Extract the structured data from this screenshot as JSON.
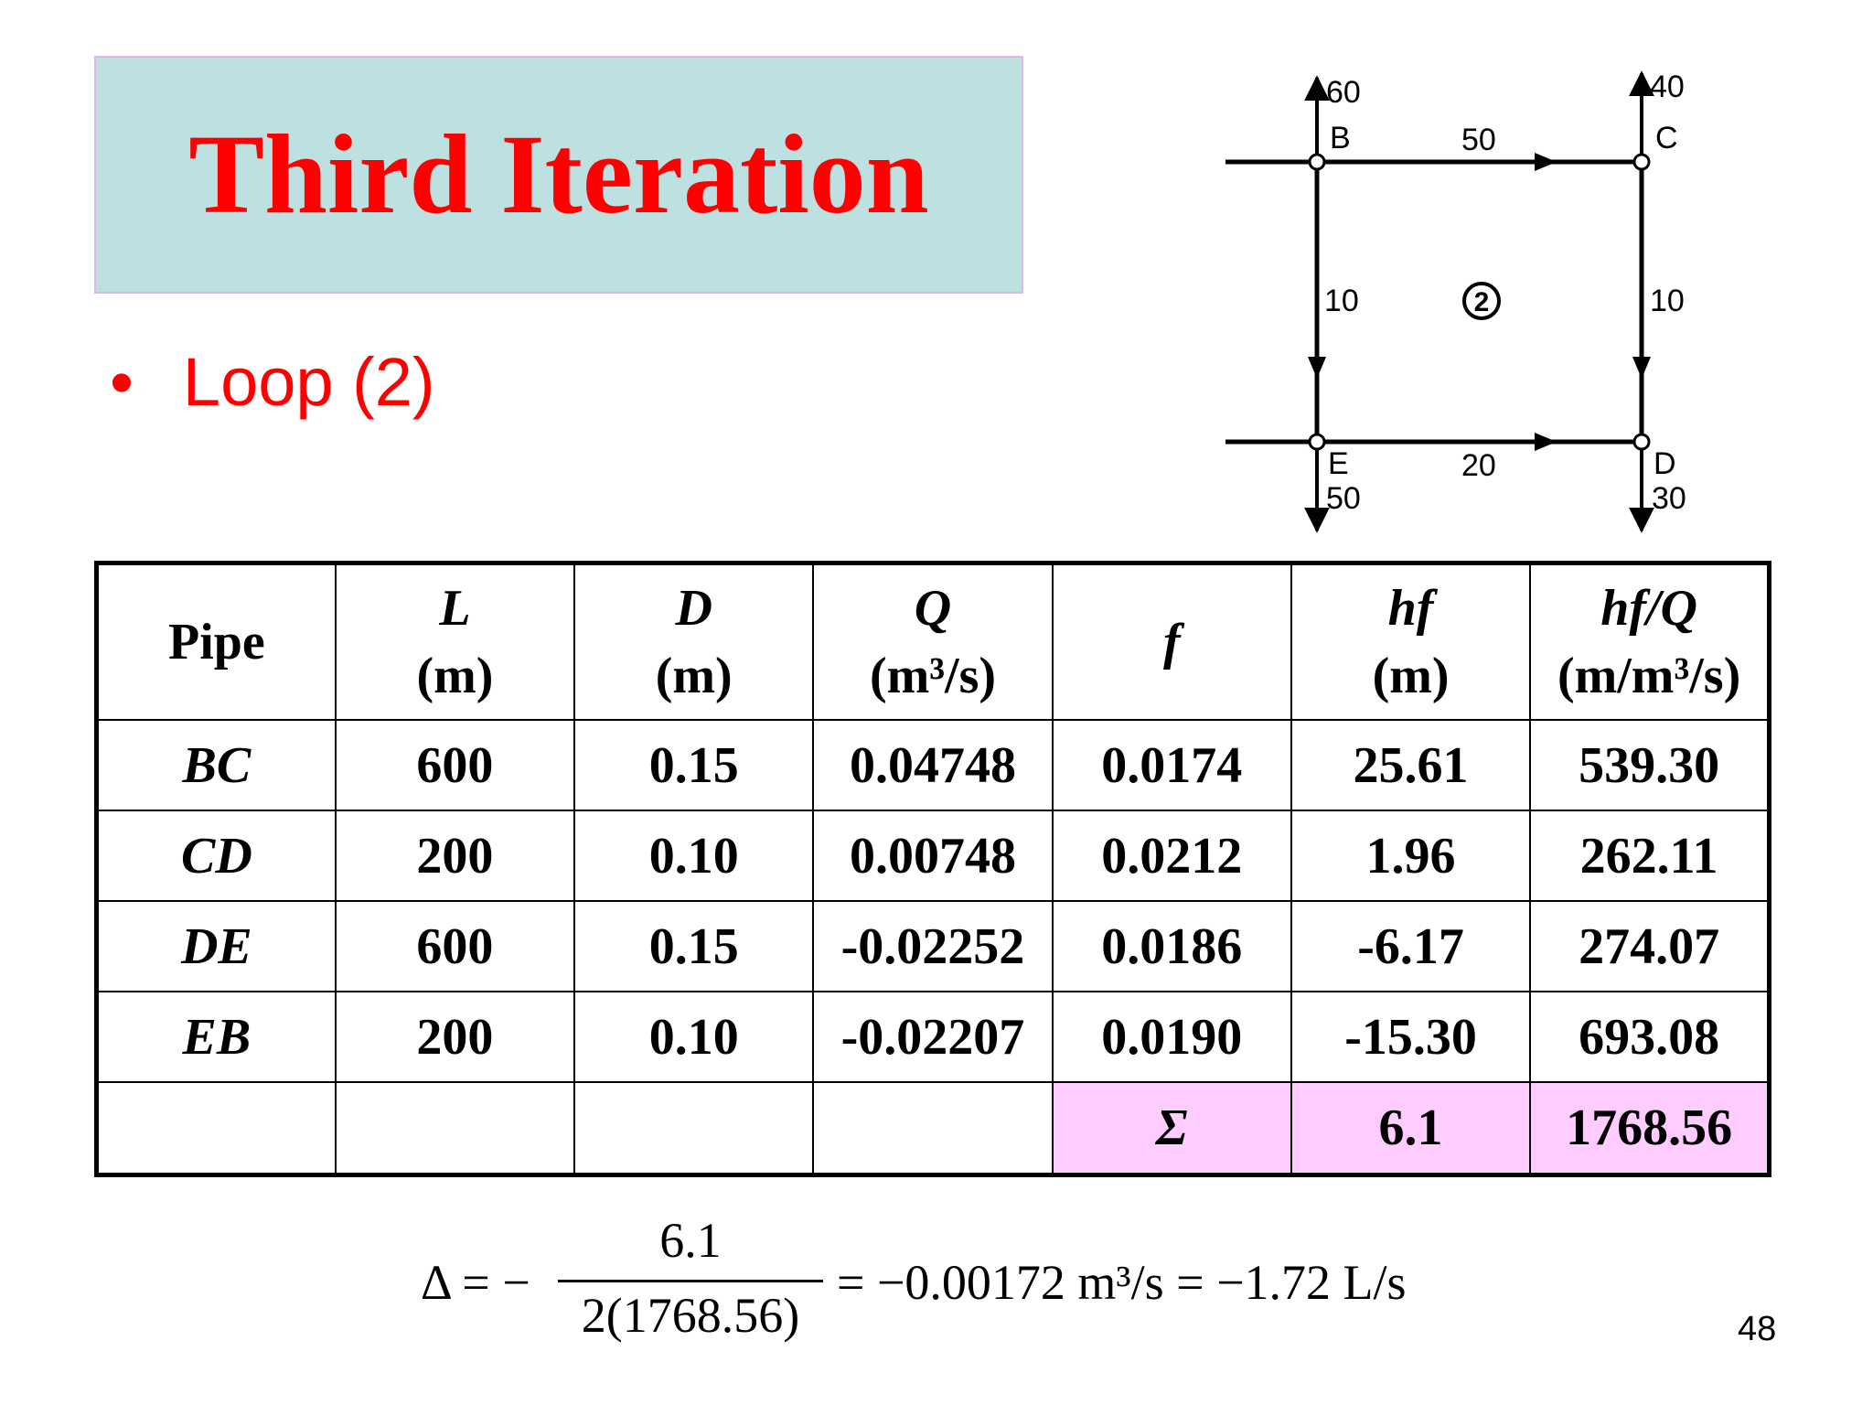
{
  "slide": {
    "title": "Third Iteration",
    "bullet_marker": "•",
    "bullet": "Loop (2)",
    "page_number": "48"
  },
  "diagram": {
    "nodes": {
      "B": "B",
      "C": "C",
      "D": "D",
      "E": "E"
    },
    "flows": {
      "top_b": "60",
      "top_c": "40",
      "bc": "50",
      "be": "10",
      "cd": "10",
      "ed": "20",
      "bottom_e": "50",
      "bottom_d": "30"
    },
    "loop_label": "2"
  },
  "table": {
    "headers": [
      {
        "l1": "",
        "l2": "Pipe"
      },
      {
        "l1": "L",
        "l2": "(m)"
      },
      {
        "l1": "D",
        "l2": "(m)"
      },
      {
        "l1": "Q",
        "l2": "(m³/s)"
      },
      {
        "l1": "f",
        "l2": ""
      },
      {
        "l1": "hf",
        "l2": "(m)"
      },
      {
        "l1": "hf/Q",
        "l2": "(m/m³/s)"
      }
    ],
    "rows": [
      [
        "BC",
        "600",
        "0.15",
        "0.04748",
        "0.0174",
        "25.61",
        "539.30"
      ],
      [
        "CD",
        "200",
        "0.10",
        "0.00748",
        "0.0212",
        "1.96",
        "262.11"
      ],
      [
        "DE",
        "600",
        "0.15",
        "-0.02252",
        "0.0186",
        "-6.17",
        "274.07"
      ],
      [
        "EB",
        "200",
        "0.10",
        "-0.02207",
        "0.0190",
        "-15.30",
        "693.08"
      ]
    ],
    "sum": {
      "symbol": "Σ",
      "hf": "6.1",
      "hfq": "1768.56"
    }
  },
  "formula": {
    "lhs": "Δ = −",
    "numerator": "6.1",
    "denominator": "2(1768.56)",
    "rhs": "= −0.00172 m³/s = −1.72 L/s"
  }
}
